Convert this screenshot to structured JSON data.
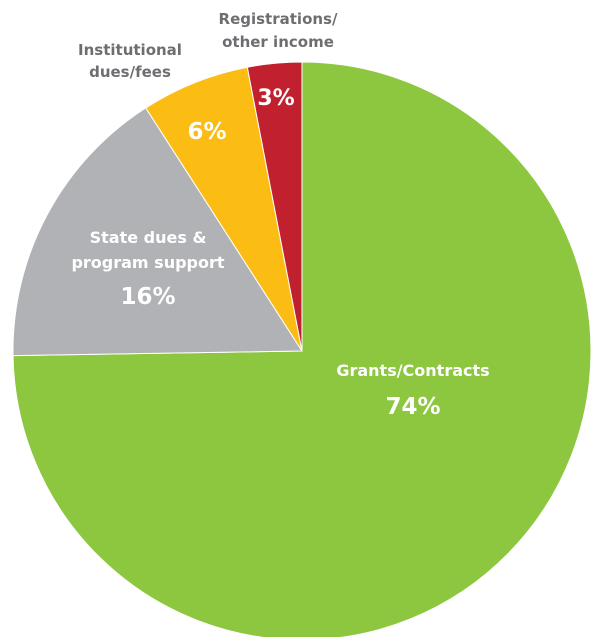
{
  "chart_data": {
    "type": "pie",
    "slices": [
      {
        "label": "Grants/Contracts",
        "value": 74,
        "value_label": "74%",
        "color": "#8dc63f"
      },
      {
        "label": "State dues & program support",
        "label_lines": [
          "State dues &",
          "program support"
        ],
        "value": 16,
        "value_label": "16%",
        "color": "#b1b2b5"
      },
      {
        "label": "Institutional dues/fees",
        "label_lines": [
          "Institutional",
          "dues/fees"
        ],
        "value": 6,
        "value_label": "6%",
        "color": "#fbbc13"
      },
      {
        "label": "Registrations/ other income",
        "label_lines": [
          "Registrations/",
          "other income"
        ],
        "value": 3,
        "value_label": "3%",
        "color": "#c1202e"
      }
    ],
    "start": "12 o'clock",
    "direction": "clockwise"
  }
}
